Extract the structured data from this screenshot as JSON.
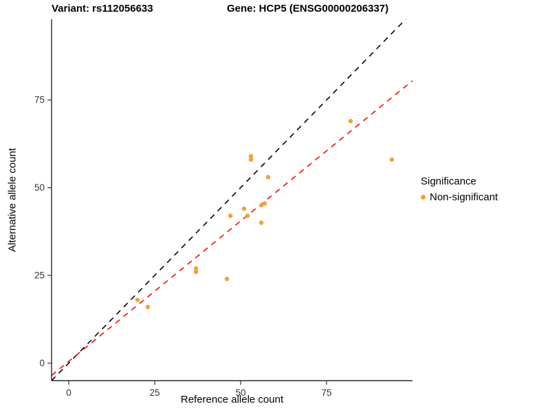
{
  "titles": {
    "variant": "Variant: rs112056633",
    "gene": "Gene: HCP5 (ENSG00000206337)"
  },
  "axes": {
    "x_label": "Reference allele count",
    "y_label": "Alternative allele count"
  },
  "legend": {
    "title": "Significance",
    "items": [
      {
        "label": "Non-significant",
        "color": "#F8A02C"
      }
    ]
  },
  "chart_data": {
    "type": "scatter",
    "title": "Variant: rs112056633 — Gene: HCP5 (ENSG00000206337)",
    "xlabel": "Reference allele count",
    "ylabel": "Alternative allele count",
    "xlim": [
      -5,
      100
    ],
    "ylim": [
      -5,
      98
    ],
    "x_ticks": [
      0,
      25,
      50,
      75
    ],
    "y_ticks": [
      0,
      25,
      50,
      75
    ],
    "grid": false,
    "legend_position": "right",
    "point_color": "#F8A02C",
    "series": [
      {
        "name": "Non-significant",
        "points": [
          [
            20,
            18
          ],
          [
            23,
            16
          ],
          [
            37,
            27
          ],
          [
            37,
            26
          ],
          [
            46,
            24
          ],
          [
            47,
            42
          ],
          [
            51,
            44
          ],
          [
            52,
            42
          ],
          [
            53,
            59
          ],
          [
            53,
            58
          ],
          [
            58,
            53
          ],
          [
            56,
            45
          ],
          [
            57,
            45.5
          ],
          [
            56,
            40
          ],
          [
            82,
            69
          ],
          [
            94,
            58
          ]
        ]
      }
    ],
    "lines": [
      {
        "name": "identity-line",
        "slope": 1.0,
        "intercept": 0.0,
        "color": "#000000",
        "dash": "8,7"
      },
      {
        "name": "regression-line",
        "slope": 0.8,
        "intercept": 0.5,
        "color": "#FF0000",
        "dash": "8,7"
      }
    ]
  }
}
